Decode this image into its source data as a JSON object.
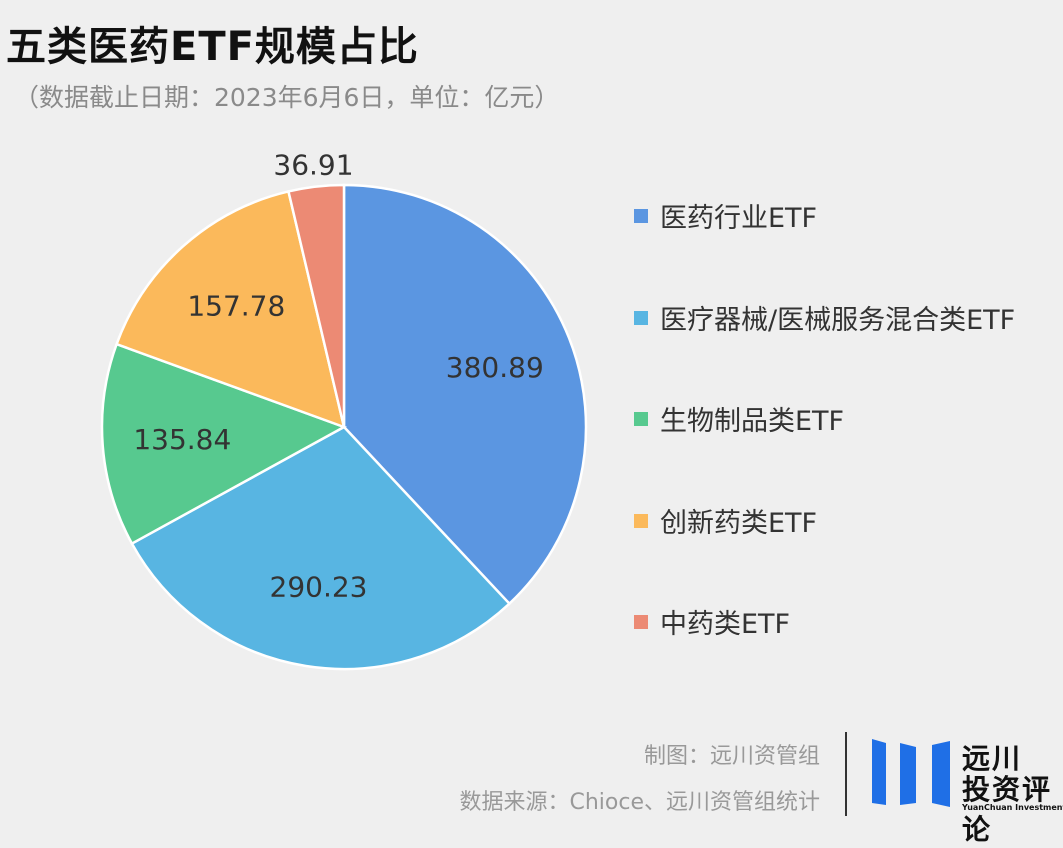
{
  "chart_data": {
    "type": "pie",
    "title": "五类医药ETF规模占比",
    "subtitle": "（数据截止日期：2023年6月6日，单位：亿元）",
    "series": [
      {
        "name": "医药行业ETF",
        "value": 380.89,
        "label": "380.89",
        "color": "#5b96e1"
      },
      {
        "name": "医疗器械/医械服务混合类ETF",
        "value": 290.23,
        "label": "290.23",
        "color": "#58b5e2"
      },
      {
        "name": "生物制品类ETF",
        "value": 135.84,
        "label": "135.84",
        "color": "#57c98f"
      },
      {
        "name": "创新药类ETF",
        "value": 157.78,
        "label": "157.78",
        "color": "#fbb95b"
      },
      {
        "name": "中药类ETF",
        "value": 36.91,
        "label": "36.91",
        "color": "#ec8a74"
      }
    ],
    "legend_position": "right"
  },
  "footer": {
    "maker": "制图：远川资管组",
    "source": "数据来源：Chioce、远川资管组统计"
  },
  "logo": {
    "line1": "远川",
    "line2": "投资评论",
    "english": "YuanChuan Investment Review",
    "color": "#1f6fe6"
  }
}
